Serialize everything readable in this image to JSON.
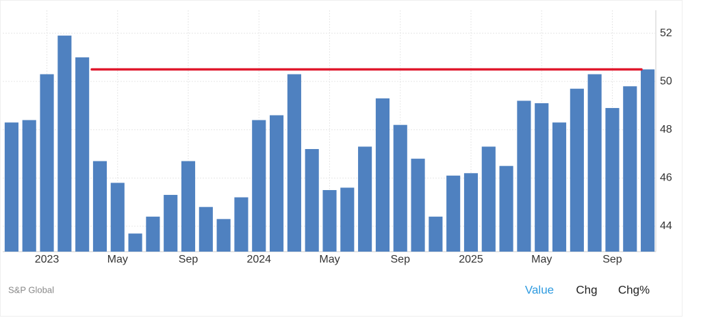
{
  "chart_data": {
    "type": "bar",
    "categories": [
      null,
      null,
      "2023",
      null,
      null,
      null,
      "May",
      null,
      null,
      null,
      "Sep",
      null,
      null,
      null,
      "2024",
      null,
      null,
      null,
      "May",
      null,
      null,
      null,
      "Sep",
      null,
      null,
      null,
      "2025",
      null,
      null,
      null,
      "May",
      null,
      null,
      null,
      "Sep",
      null,
      null
    ],
    "values": [
      48.3,
      48.4,
      50.3,
      51.9,
      51.0,
      46.7,
      45.8,
      43.7,
      44.4,
      45.3,
      46.7,
      44.8,
      44.3,
      45.2,
      48.4,
      48.6,
      50.3,
      47.2,
      45.5,
      45.6,
      47.3,
      49.3,
      48.2,
      46.8,
      44.4,
      46.1,
      46.2,
      47.3,
      46.5,
      49.2,
      49.1,
      48.3,
      49.7,
      50.3,
      48.9,
      49.8,
      50.5
    ],
    "color": "#4f81c0",
    "reference_line": {
      "value": 50.5,
      "color": "#e0182d"
    },
    "ylim": [
      42.95,
      52.95
    ],
    "yticks": [
      44,
      46,
      48,
      50,
      52
    ],
    "grid": true,
    "y_axis_side": "right",
    "source": "S&P Global"
  },
  "controls": [
    "Value",
    "Chg",
    "Chg%"
  ]
}
